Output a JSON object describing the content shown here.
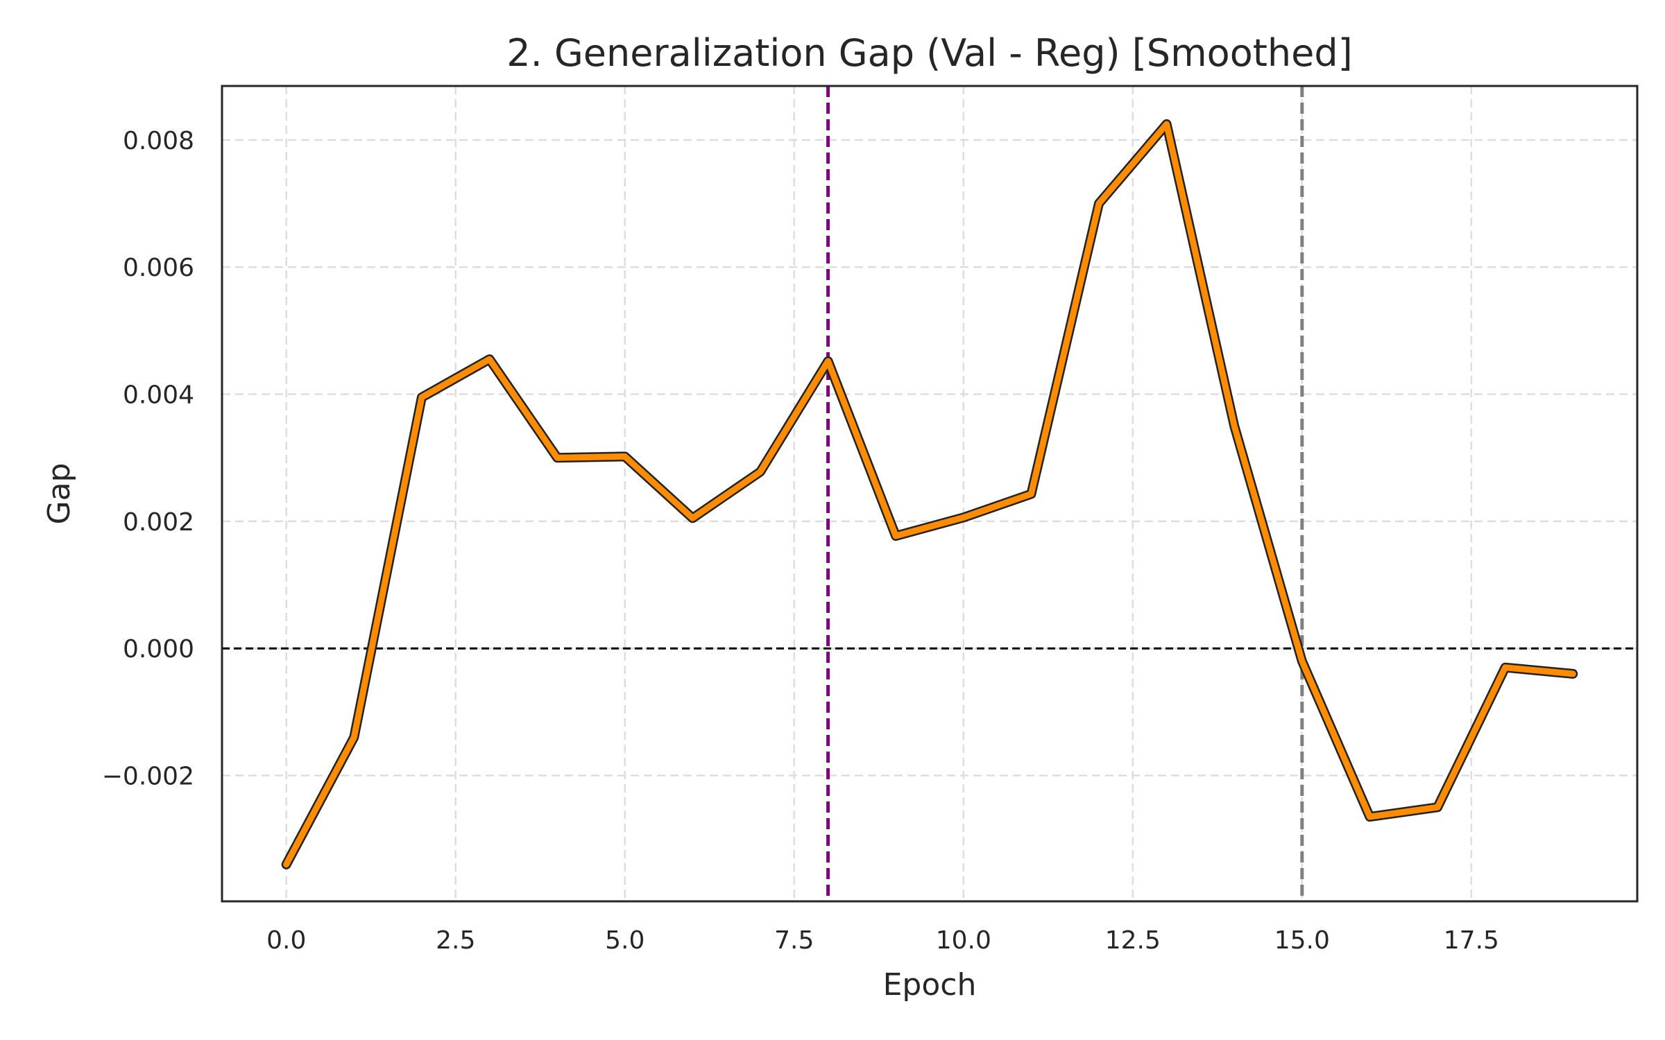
{
  "chart_data": {
    "type": "line",
    "title": "2. Generalization Gap (Val - Reg) [Smoothed]",
    "xlabel": "Epoch",
    "ylabel": "Gap",
    "xlim": [
      -0.95,
      19.95
    ],
    "ylim": [
      -0.00398,
      0.00885
    ],
    "x_ticks": [
      0.0,
      2.5,
      5.0,
      7.5,
      10.0,
      12.5,
      15.0,
      17.5
    ],
    "x_tick_labels": [
      "0.0",
      "2.5",
      "5.0",
      "7.5",
      "10.0",
      "12.5",
      "15.0",
      "17.5"
    ],
    "y_ticks": [
      -0.002,
      0.0,
      0.002,
      0.004,
      0.006,
      0.008
    ],
    "y_tick_labels": [
      "−0.002",
      "0.000",
      "0.002",
      "0.004",
      "0.006",
      "0.008"
    ],
    "grid": true,
    "series": [
      {
        "color": "#ff8c00",
        "x": [
          0,
          1,
          2,
          3,
          4,
          5,
          6,
          7,
          8,
          9,
          10,
          11,
          12,
          13,
          14,
          15,
          16,
          17,
          18,
          19
        ],
        "values": [
          -0.0034,
          -0.0014,
          0.00395,
          0.00455,
          0.003,
          0.00302,
          0.00205,
          0.00278,
          0.00452,
          0.00177,
          0.00206,
          0.00243,
          0.007,
          0.00825,
          0.0035,
          -0.0002,
          -0.00265,
          -0.0025,
          -0.0003,
          -0.0004
        ]
      }
    ],
    "reference_lines": [
      {
        "orientation": "horizontal",
        "value": 0.0,
        "color": "#000000",
        "style": "dashed"
      },
      {
        "orientation": "vertical",
        "value": 8,
        "color": "#800080",
        "style": "dashed"
      },
      {
        "orientation": "vertical",
        "value": 15,
        "color": "#808080",
        "style": "dashed"
      }
    ]
  }
}
